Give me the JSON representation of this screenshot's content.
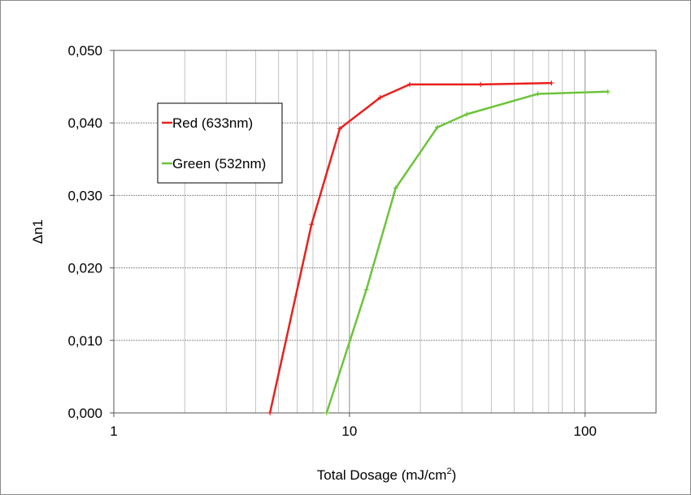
{
  "chart_data": {
    "type": "line",
    "xlabel": "Total Dosage (mJ/cm",
    "xlabel_sup": "2",
    "xlabel_end": ")",
    "ylabel": "Δn1",
    "x_scale": "log",
    "xlim": [
      1,
      200
    ],
    "ylim": [
      0.0,
      0.05
    ],
    "x_ticks": [
      {
        "value": 1,
        "label": "1"
      },
      {
        "value": 10,
        "label": "10"
      },
      {
        "value": 100,
        "label": "100"
      }
    ],
    "y_ticks": [
      {
        "value": 0.0,
        "label": "0,000"
      },
      {
        "value": 0.01,
        "label": "0,010"
      },
      {
        "value": 0.02,
        "label": "0,020"
      },
      {
        "value": 0.03,
        "label": "0,030"
      },
      {
        "value": 0.04,
        "label": "0,040"
      },
      {
        "value": 0.05,
        "label": "0,050"
      }
    ],
    "grid": true,
    "legend_position": "upper-left",
    "series": [
      {
        "name": "Red (633nm)",
        "color": "#e8201e",
        "x": [
          4.6,
          6.9,
          9.1,
          13.5,
          18.0,
          36.0,
          72.0
        ],
        "y": [
          0.0,
          0.026,
          0.0392,
          0.0435,
          0.0453,
          0.0453,
          0.0455
        ]
      },
      {
        "name": "Green (532nm)",
        "color": "#6cc43a",
        "x": [
          8.0,
          11.8,
          15.7,
          23.6,
          31.5,
          63.0,
          125.0
        ],
        "y": [
          0.0,
          0.017,
          0.031,
          0.0394,
          0.0412,
          0.044,
          0.0443
        ]
      }
    ]
  }
}
